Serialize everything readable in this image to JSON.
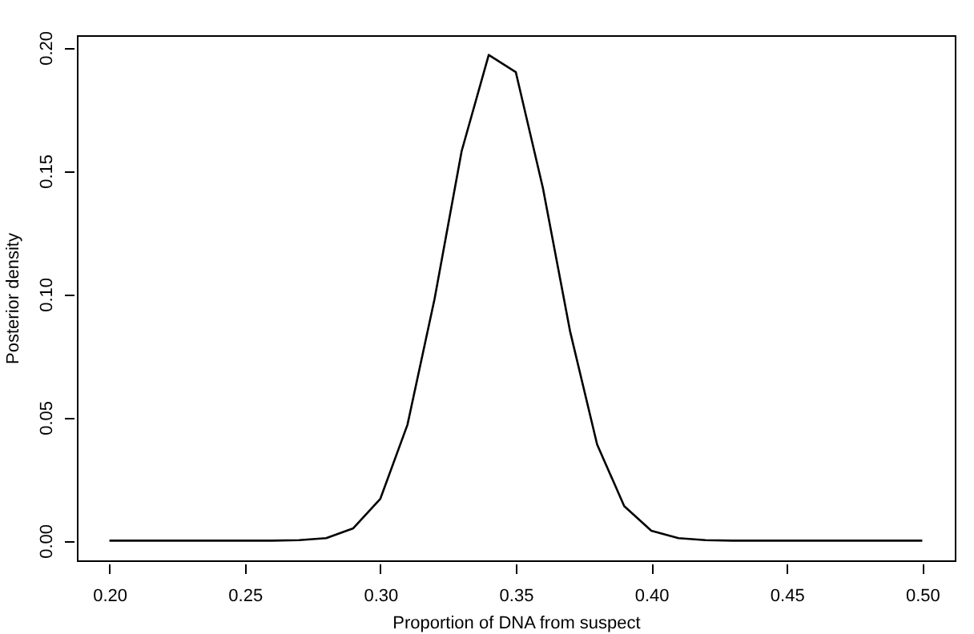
{
  "chart_data": {
    "type": "line",
    "xlabel": "Proportion of DNA from suspect",
    "ylabel": "Posterior density",
    "x": [
      0.2,
      0.21,
      0.22,
      0.23,
      0.24,
      0.25,
      0.26,
      0.27,
      0.28,
      0.29,
      0.3,
      0.31,
      0.32,
      0.33,
      0.34,
      0.35,
      0.36,
      0.37,
      0.38,
      0.39,
      0.4,
      0.41,
      0.42,
      0.43,
      0.44,
      0.45,
      0.46,
      0.47,
      0.48,
      0.49,
      0.5
    ],
    "series": [
      {
        "color": "#000000",
        "values": [
          0,
          0,
          0,
          0,
          0,
          0,
          0,
          0.0002,
          0.001,
          0.005,
          0.017,
          0.047,
          0.098,
          0.158,
          0.197,
          0.19,
          0.143,
          0.085,
          0.039,
          0.014,
          0.004,
          0.001,
          0.0002,
          0,
          0,
          0,
          0,
          0,
          0,
          0,
          0
        ]
      }
    ],
    "xlim": [
      0.188,
      0.512
    ],
    "ylim": [
      -0.008,
      0.205
    ],
    "xticks": [
      {
        "value": 0.2,
        "label": "0.20"
      },
      {
        "value": 0.25,
        "label": "0.25"
      },
      {
        "value": 0.3,
        "label": "0.30"
      },
      {
        "value": 0.35,
        "label": "0.35"
      },
      {
        "value": 0.4,
        "label": "0.40"
      },
      {
        "value": 0.45,
        "label": "0.45"
      },
      {
        "value": 0.5,
        "label": "0.50"
      }
    ],
    "yticks": [
      {
        "value": 0,
        "label": "0.00"
      },
      {
        "value": 0.05,
        "label": "0.05"
      },
      {
        "value": 0.1,
        "label": "0.10"
      },
      {
        "value": 0.15,
        "label": "0.15"
      },
      {
        "value": 0.2,
        "label": "0.20"
      }
    ],
    "grid": false,
    "marker": "none",
    "line_style": "solid"
  }
}
